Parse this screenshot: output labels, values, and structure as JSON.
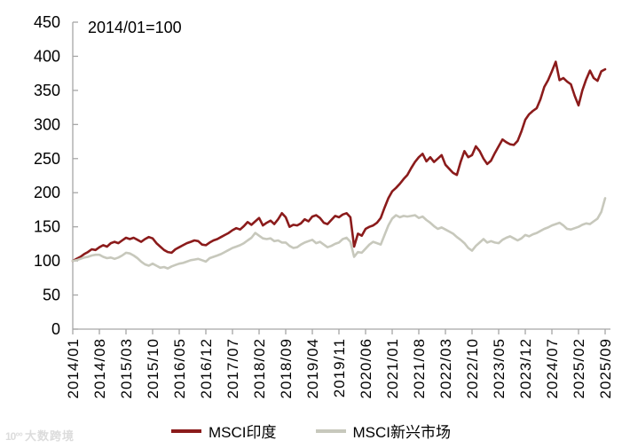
{
  "watermark": {
    "logo": "10°°",
    "text": "大数跨境"
  },
  "chart_data": {
    "type": "line",
    "annotation": "2014/01=100",
    "grid": false,
    "legend_position": "bottom",
    "axis_color": "#a6a6a6",
    "text_color": "#000000",
    "ylim": [
      0,
      450
    ],
    "y_ticks": [
      0,
      50,
      100,
      150,
      200,
      250,
      300,
      350,
      400,
      450
    ],
    "x_tick_labels": [
      "2014/01",
      "2014/08",
      "2015/03",
      "2015/10",
      "2016/05",
      "2016/12",
      "2017/07",
      "2018/02",
      "2018/09",
      "2019/04",
      "2019/11",
      "2020/06",
      "2021/01",
      "2021/08",
      "2022/03",
      "2022/10",
      "2023/05",
      "2023/12",
      "2024/07",
      "2025/02",
      "2025/09"
    ],
    "points_per_tick": 7,
    "x_frequency": "monthly",
    "series": [
      {
        "name": "MSCI印度",
        "color": "#8B1B1B",
        "values": [
          100,
          103,
          106,
          110,
          113,
          117,
          116,
          120,
          123,
          121,
          126,
          128,
          126,
          130,
          134,
          132,
          134,
          131,
          128,
          132,
          135,
          133,
          126,
          121,
          116,
          113,
          112,
          117,
          120,
          123,
          126,
          128,
          130,
          129,
          124,
          123,
          127,
          130,
          132,
          135,
          138,
          141,
          145,
          148,
          146,
          151,
          157,
          153,
          158,
          163,
          152,
          156,
          159,
          154,
          161,
          170,
          164,
          150,
          153,
          152,
          155,
          161,
          158,
          165,
          167,
          163,
          156,
          154,
          160,
          166,
          164,
          168,
          170,
          164,
          121,
          140,
          137,
          147,
          150,
          152,
          156,
          163,
          178,
          192,
          202,
          207,
          213,
          220,
          226,
          236,
          245,
          252,
          257,
          246,
          252,
          245,
          250,
          255,
          241,
          235,
          229,
          226,
          245,
          261,
          252,
          255,
          268,
          261,
          250,
          242,
          247,
          258,
          268,
          278,
          274,
          271,
          270,
          276,
          290,
          307,
          315,
          320,
          324,
          337,
          355,
          365,
          378,
          392,
          365,
          368,
          363,
          359,
          342,
          328,
          350,
          366,
          379,
          368,
          364,
          378,
          381
        ]
      },
      {
        "name": "MSCI新兴市场",
        "color": "#C7C8BC",
        "values": [
          100,
          101,
          103,
          105,
          106,
          108,
          109,
          109,
          106,
          104,
          105,
          103,
          105,
          108,
          112,
          111,
          108,
          104,
          99,
          95,
          93,
          96,
          93,
          90,
          91,
          89,
          92,
          94,
          96,
          97,
          99,
          101,
          102,
          103,
          101,
          99,
          104,
          106,
          108,
          110,
          113,
          116,
          119,
          121,
          123,
          126,
          130,
          134,
          141,
          137,
          133,
          132,
          133,
          129,
          130,
          127,
          127,
          122,
          119,
          120,
          124,
          127,
          129,
          131,
          126,
          128,
          124,
          120,
          122,
          125,
          127,
          132,
          134,
          128,
          106,
          113,
          112,
          118,
          124,
          128,
          126,
          124,
          138,
          152,
          162,
          167,
          164,
          166,
          165,
          166,
          167,
          163,
          165,
          160,
          156,
          151,
          147,
          149,
          146,
          143,
          140,
          135,
          131,
          126,
          119,
          115,
          122,
          127,
          132,
          127,
          129,
          127,
          126,
          131,
          134,
          136,
          133,
          130,
          133,
          138,
          136,
          139,
          141,
          144,
          147,
          149,
          152,
          154,
          156,
          152,
          147,
          146,
          148,
          150,
          153,
          155,
          154,
          158,
          162,
          172,
          192
        ]
      }
    ]
  }
}
